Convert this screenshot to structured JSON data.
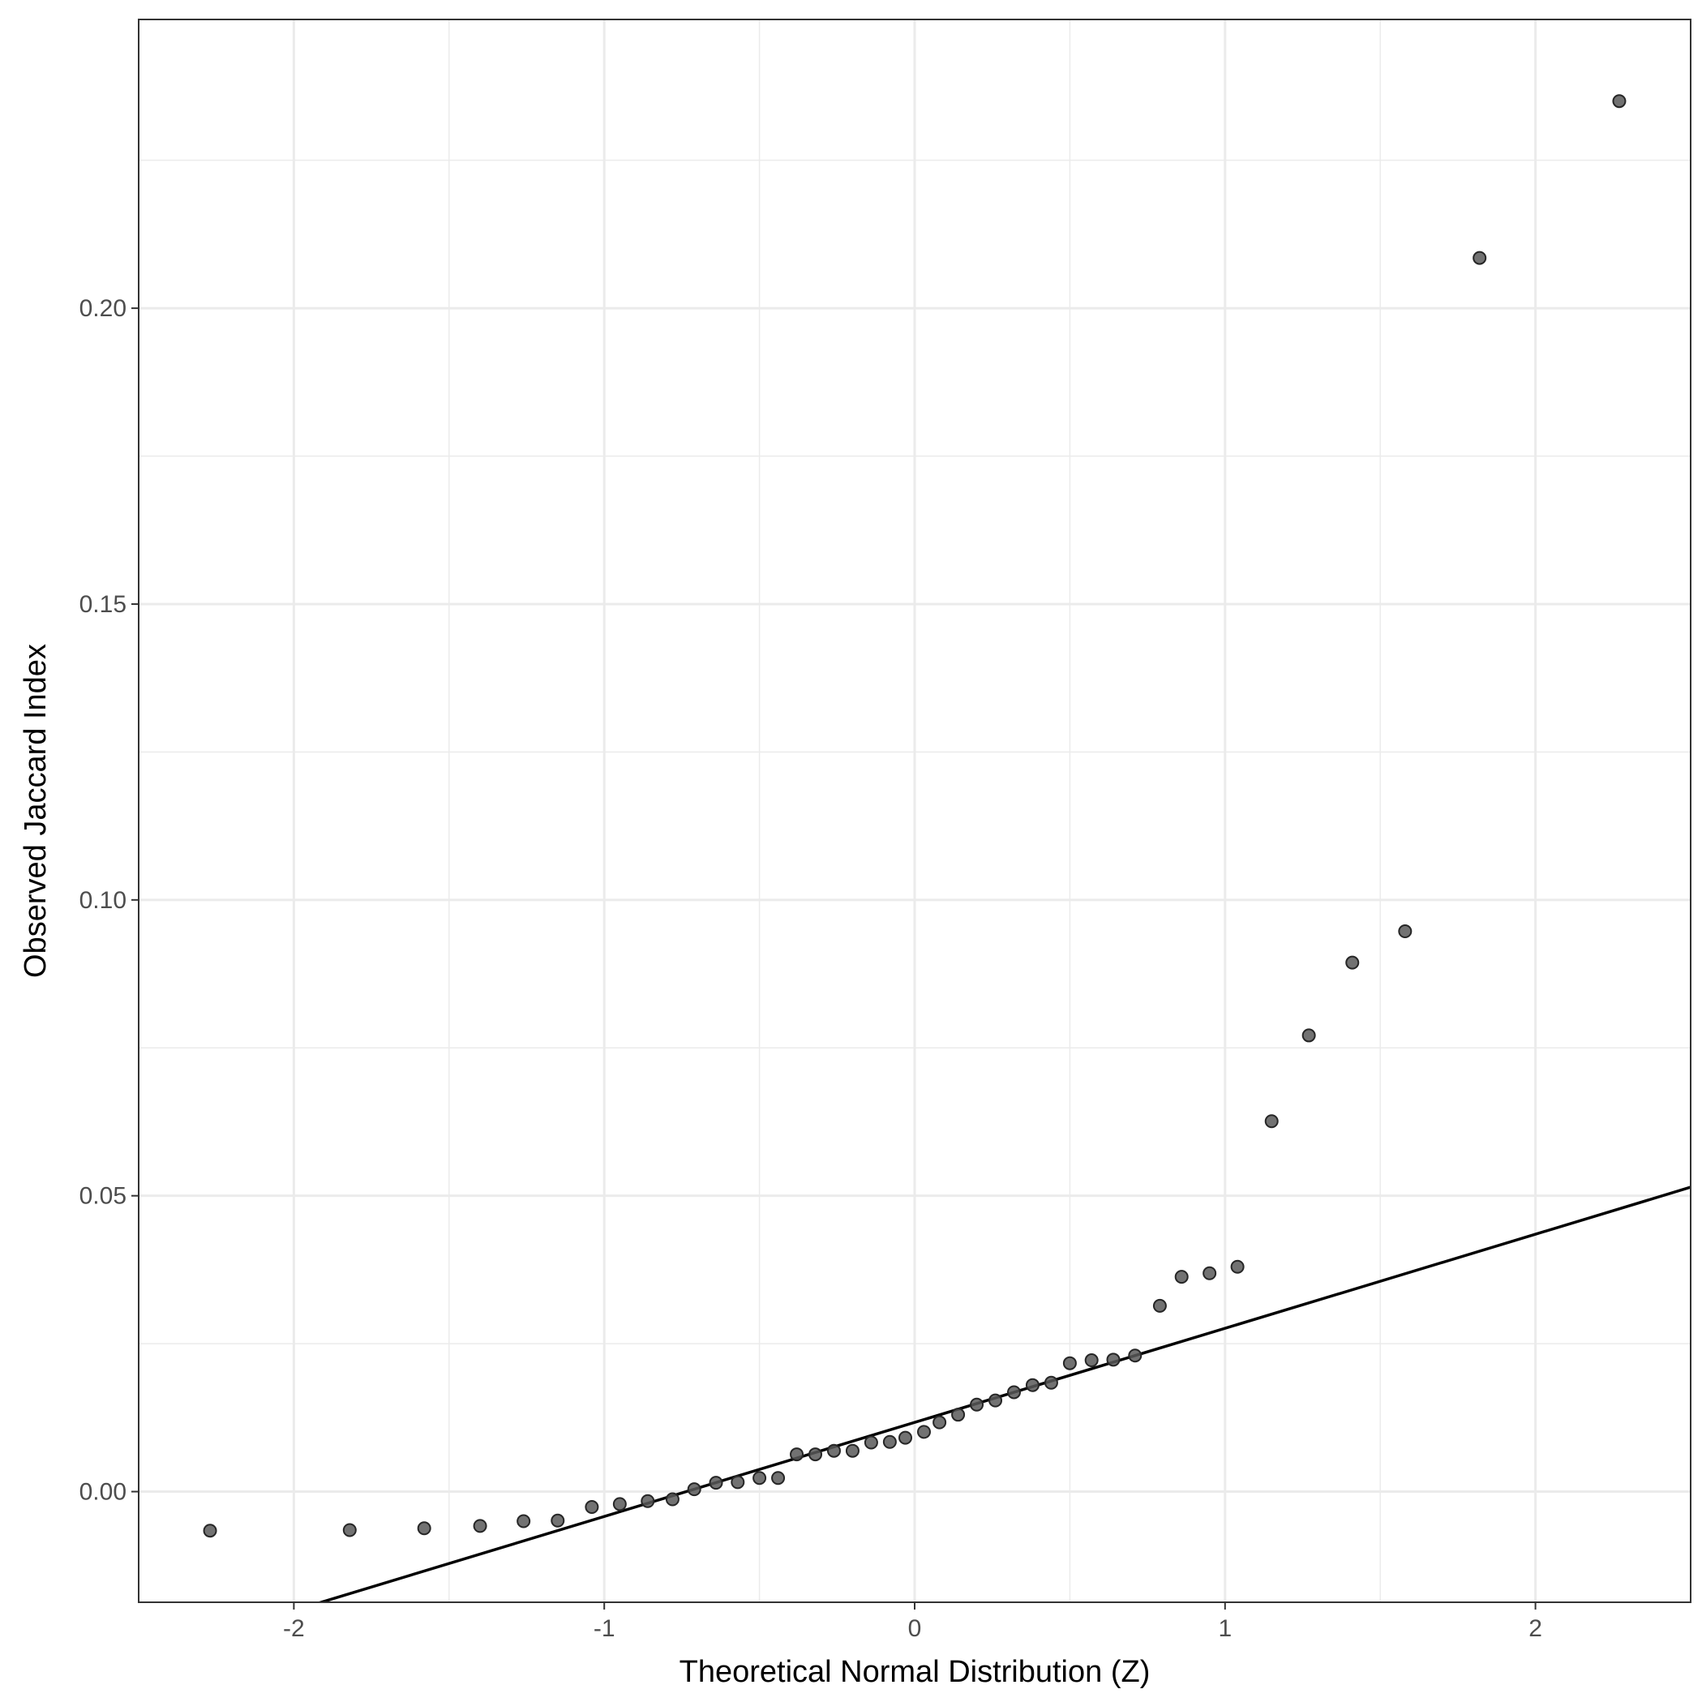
{
  "chart_data": {
    "type": "scatter",
    "title": "",
    "xlabel": "Theoretical Normal Distribution (Z)",
    "ylabel": "Observed Jaccard Index",
    "xlim": [
      -2.5,
      2.5
    ],
    "ylim": [
      -0.0187,
      0.2488
    ],
    "x_ticks": [
      -2,
      -1,
      0,
      1,
      2
    ],
    "x_tick_labels": [
      "-2",
      "-1",
      "0",
      "1",
      "2"
    ],
    "y_ticks": [
      0.0,
      0.05,
      0.1,
      0.15,
      0.2
    ],
    "y_tick_labels": [
      "0.00",
      "0.05",
      "0.10",
      "0.15",
      "0.20"
    ],
    "grid": true,
    "points": [
      [
        -2.27,
        -0.0066
      ],
      [
        -1.82,
        -0.0065
      ],
      [
        -1.58,
        -0.0062
      ],
      [
        -1.4,
        -0.0058
      ],
      [
        -1.26,
        -0.005
      ],
      [
        -1.15,
        -0.0049
      ],
      [
        -1.04,
        -0.0026
      ],
      [
        -0.95,
        -0.0021
      ],
      [
        -0.86,
        -0.0016
      ],
      [
        -0.78,
        -0.0013
      ],
      [
        -0.71,
        0.0004
      ],
      [
        -0.64,
        0.0015
      ],
      [
        -0.57,
        0.0016
      ],
      [
        -0.5,
        0.0023
      ],
      [
        -0.44,
        0.0023
      ],
      [
        -0.38,
        0.0063
      ],
      [
        -0.32,
        0.0063
      ],
      [
        -0.26,
        0.0069
      ],
      [
        -0.2,
        0.0069
      ],
      [
        -0.14,
        0.0083
      ],
      [
        -0.08,
        0.0084
      ],
      [
        -0.03,
        0.0091
      ],
      [
        0.03,
        0.0101
      ],
      [
        0.08,
        0.0117
      ],
      [
        0.14,
        0.013
      ],
      [
        0.2,
        0.0147
      ],
      [
        0.26,
        0.0154
      ],
      [
        0.32,
        0.0168
      ],
      [
        0.38,
        0.018
      ],
      [
        0.44,
        0.0184
      ],
      [
        0.5,
        0.0217
      ],
      [
        0.57,
        0.0222
      ],
      [
        0.64,
        0.0223
      ],
      [
        0.71,
        0.023
      ],
      [
        0.79,
        0.0314
      ],
      [
        0.86,
        0.0363
      ],
      [
        0.95,
        0.0369
      ],
      [
        1.04,
        0.038
      ],
      [
        1.15,
        0.0626
      ],
      [
        1.27,
        0.0771
      ],
      [
        1.41,
        0.0894
      ],
      [
        1.58,
        0.0947
      ],
      [
        1.82,
        0.2085
      ],
      [
        2.27,
        0.235
      ]
    ],
    "reference_line": {
      "type": "qq-line",
      "intercept": 0.0117,
      "slope": 0.0159
    },
    "point_color": "#595959",
    "line_color": "#000000"
  }
}
